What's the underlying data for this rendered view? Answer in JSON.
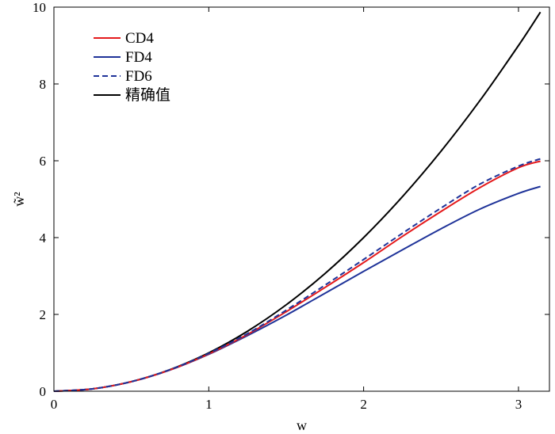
{
  "chart_data": {
    "type": "line",
    "title": "",
    "xlabel": "w",
    "ylabel": "w̃²",
    "xlim": [
      0,
      3.2
    ],
    "ylim": [
      0,
      10
    ],
    "xticks": [
      "0",
      "1",
      "2",
      "3"
    ],
    "yticks": [
      "0",
      "2",
      "4",
      "6",
      "8",
      "10"
    ],
    "legend_position": "top-left",
    "x": [
      0,
      0.25,
      0.5,
      0.75,
      1.0,
      1.25,
      1.5,
      1.75,
      2.0,
      2.25,
      2.5,
      2.75,
      3.0,
      3.1416
    ],
    "series": [
      {
        "name": "CD4",
        "color": "#e41a1c",
        "dash": "solid",
        "values": [
          0,
          0.0625,
          0.249,
          0.556,
          0.972,
          1.48,
          2.07,
          2.7,
          3.35,
          4.03,
          4.68,
          5.3,
          5.82,
          5.99
        ]
      },
      {
        "name": "FD4",
        "color": "#1f3399",
        "dash": "solid",
        "values": [
          0,
          0.0625,
          0.249,
          0.554,
          0.962,
          1.45,
          1.98,
          2.55,
          3.12,
          3.68,
          4.23,
          4.74,
          5.15,
          5.33
        ]
      },
      {
        "name": "FD6",
        "color": "#1f3399",
        "dash": "dashed",
        "values": [
          0,
          0.0625,
          0.25,
          0.561,
          0.985,
          1.5,
          2.11,
          2.76,
          3.43,
          4.11,
          4.77,
          5.39,
          5.86,
          6.05
        ]
      },
      {
        "name": "精确值",
        "color": "#000000",
        "dash": "solid",
        "values": [
          0,
          0.0625,
          0.25,
          0.5625,
          1.0,
          1.5625,
          2.25,
          3.0625,
          4.0,
          5.0625,
          6.25,
          7.5625,
          9.0,
          9.87
        ]
      }
    ]
  }
}
